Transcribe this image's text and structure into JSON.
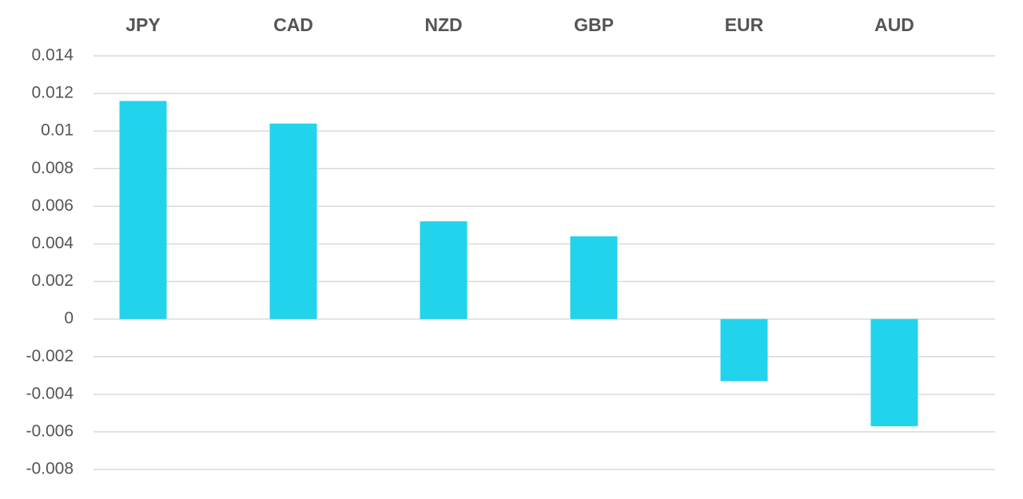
{
  "chart_data": {
    "type": "bar",
    "categories": [
      "JPY",
      "CAD",
      "NZD",
      "GBP",
      "EUR",
      "AUD"
    ],
    "values": [
      0.0116,
      0.0104,
      0.0052,
      0.0044,
      -0.0033,
      -0.0057
    ],
    "color": "#21d3eb",
    "ylim": [
      -0.008,
      0.014
    ],
    "yticks": [
      0.014,
      0.012,
      0.01,
      0.008,
      0.006,
      0.004,
      0.002,
      0,
      -0.002,
      -0.004,
      -0.006,
      -0.008
    ],
    "grid": true
  }
}
